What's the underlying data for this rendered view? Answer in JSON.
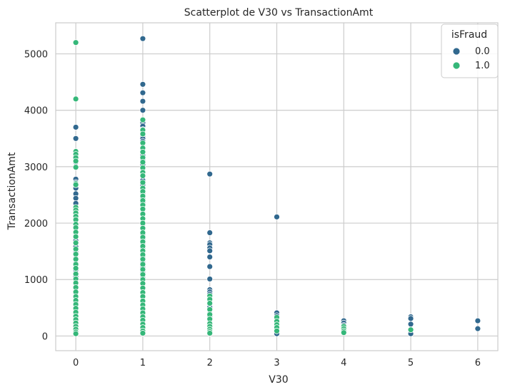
{
  "chart_data": {
    "type": "scatter",
    "title": "Scatterplot de V30 vs TransactionAmt",
    "xlabel": "V30",
    "ylabel": "TransactionAmt",
    "xlim": [
      -0.3,
      6.3
    ],
    "ylim": [
      -260,
      5550
    ],
    "xticks": [
      0,
      1,
      2,
      3,
      4,
      5,
      6
    ],
    "yticks": [
      0,
      1000,
      2000,
      3000,
      4000,
      5000
    ],
    "grid": true,
    "legend": {
      "title": "isFraud",
      "position": "top-right"
    },
    "series": [
      {
        "name": "0.0",
        "color": "#31688e",
        "points": [
          [
            0,
            3700
          ],
          [
            0,
            3500
          ],
          [
            0,
            3250
          ],
          [
            0,
            3080
          ],
          [
            0,
            2780
          ],
          [
            0,
            2720
          ],
          [
            0,
            2620
          ],
          [
            0,
            2520
          ],
          [
            0,
            2440
          ],
          [
            0,
            2350
          ],
          [
            0,
            2230
          ],
          [
            0,
            2100
          ],
          [
            0,
            1950
          ],
          [
            0,
            1840
          ],
          [
            0,
            1780
          ],
          [
            0,
            1690
          ],
          [
            0,
            1580
          ],
          [
            0,
            1480
          ],
          [
            0,
            1380
          ],
          [
            0,
            1290
          ],
          [
            0,
            1170
          ],
          [
            0,
            1050
          ],
          [
            0,
            950
          ],
          [
            0,
            850
          ],
          [
            0,
            760
          ],
          [
            0,
            680
          ],
          [
            0,
            590
          ],
          [
            0,
            520
          ],
          [
            0,
            450
          ],
          [
            0,
            390
          ],
          [
            0,
            330
          ],
          [
            0,
            270
          ],
          [
            0,
            210
          ],
          [
            0,
            160
          ],
          [
            0,
            120
          ],
          [
            0,
            80
          ],
          [
            1,
            5270
          ],
          [
            1,
            4460
          ],
          [
            1,
            4310
          ],
          [
            1,
            4160
          ],
          [
            1,
            4000
          ],
          [
            1,
            3830
          ],
          [
            1,
            3780
          ],
          [
            1,
            3720
          ],
          [
            1,
            3660
          ],
          [
            1,
            3600
          ],
          [
            1,
            3540
          ],
          [
            1,
            3500
          ],
          [
            1,
            3450
          ],
          [
            1,
            3400
          ],
          [
            1,
            3280
          ],
          [
            1,
            3200
          ],
          [
            1,
            3120
          ],
          [
            1,
            3040
          ],
          [
            1,
            2960
          ],
          [
            1,
            2900
          ],
          [
            1,
            2830
          ],
          [
            1,
            2760
          ],
          [
            1,
            2680
          ],
          [
            1,
            2600
          ],
          [
            1,
            2520
          ],
          [
            1,
            2440
          ],
          [
            1,
            2360
          ],
          [
            1,
            2280
          ],
          [
            1,
            2180
          ],
          [
            1,
            2080
          ],
          [
            1,
            1980
          ],
          [
            1,
            1900
          ],
          [
            1,
            1800
          ],
          [
            1,
            1720
          ],
          [
            1,
            1640
          ],
          [
            1,
            1560
          ],
          [
            1,
            1480
          ],
          [
            1,
            1390
          ],
          [
            1,
            1300
          ],
          [
            1,
            1210
          ],
          [
            1,
            1120
          ],
          [
            1,
            1030
          ],
          [
            1,
            940
          ],
          [
            1,
            860
          ],
          [
            1,
            780
          ],
          [
            1,
            700
          ],
          [
            1,
            620
          ],
          [
            1,
            540
          ],
          [
            1,
            460
          ],
          [
            1,
            380
          ],
          [
            1,
            310
          ],
          [
            1,
            240
          ],
          [
            1,
            170
          ],
          [
            1,
            110
          ],
          [
            1,
            60
          ],
          [
            2,
            2870
          ],
          [
            2,
            1830
          ],
          [
            2,
            1650
          ],
          [
            2,
            1620
          ],
          [
            2,
            1560
          ],
          [
            2,
            1510
          ],
          [
            2,
            1400
          ],
          [
            2,
            1230
          ],
          [
            2,
            1010
          ],
          [
            2,
            820
          ],
          [
            2,
            780
          ],
          [
            2,
            740
          ],
          [
            2,
            690
          ],
          [
            2,
            640
          ],
          [
            2,
            600
          ],
          [
            2,
            560
          ],
          [
            2,
            510
          ],
          [
            2,
            460
          ],
          [
            2,
            400
          ],
          [
            2,
            340
          ],
          [
            2,
            290
          ],
          [
            2,
            240
          ],
          [
            2,
            190
          ],
          [
            2,
            150
          ],
          [
            2,
            110
          ],
          [
            2,
            70
          ],
          [
            3,
            2110
          ],
          [
            3,
            410
          ],
          [
            3,
            360
          ],
          [
            3,
            310
          ],
          [
            3,
            260
          ],
          [
            3,
            210
          ],
          [
            3,
            160
          ],
          [
            3,
            110
          ],
          [
            3,
            70
          ],
          [
            3,
            40
          ],
          [
            4,
            270
          ],
          [
            4,
            230
          ],
          [
            4,
            190
          ],
          [
            4,
            160
          ],
          [
            4,
            120
          ],
          [
            4,
            90
          ],
          [
            4,
            60
          ],
          [
            5,
            340
          ],
          [
            5,
            310
          ],
          [
            5,
            210
          ],
          [
            5,
            110
          ],
          [
            5,
            60
          ],
          [
            5,
            40
          ],
          [
            6,
            270
          ],
          [
            6,
            130
          ]
        ]
      },
      {
        "name": "1.0",
        "color": "#35b779",
        "points": [
          [
            0,
            5200
          ],
          [
            0,
            4200
          ],
          [
            0,
            3270
          ],
          [
            0,
            3220
          ],
          [
            0,
            3160
          ],
          [
            0,
            3100
          ],
          [
            0,
            2990
          ],
          [
            0,
            2700
          ],
          [
            0,
            2680
          ],
          [
            0,
            2280
          ],
          [
            0,
            2230
          ],
          [
            0,
            2180
          ],
          [
            0,
            2120
          ],
          [
            0,
            2060
          ],
          [
            0,
            1980
          ],
          [
            0,
            1920
          ],
          [
            0,
            1840
          ],
          [
            0,
            1760
          ],
          [
            0,
            1650
          ],
          [
            0,
            1540
          ],
          [
            0,
            1450
          ],
          [
            0,
            1360
          ],
          [
            0,
            1270
          ],
          [
            0,
            1200
          ],
          [
            0,
            1100
          ],
          [
            0,
            1010
          ],
          [
            0,
            940
          ],
          [
            0,
            860
          ],
          [
            0,
            780
          ],
          [
            0,
            700
          ],
          [
            0,
            630
          ],
          [
            0,
            560
          ],
          [
            0,
            490
          ],
          [
            0,
            420
          ],
          [
            0,
            350
          ],
          [
            0,
            290
          ],
          [
            0,
            230
          ],
          [
            0,
            170
          ],
          [
            0,
            120
          ],
          [
            0,
            70
          ],
          [
            0,
            40
          ],
          [
            1,
            3830
          ],
          [
            1,
            3650
          ],
          [
            1,
            3580
          ],
          [
            1,
            3420
          ],
          [
            1,
            3330
          ],
          [
            1,
            3260
          ],
          [
            1,
            3160
          ],
          [
            1,
            3080
          ],
          [
            1,
            2980
          ],
          [
            1,
            2900
          ],
          [
            1,
            2840
          ],
          [
            1,
            2720
          ],
          [
            1,
            2620
          ],
          [
            1,
            2560
          ],
          [
            1,
            2480
          ],
          [
            1,
            2400
          ],
          [
            1,
            2320
          ],
          [
            1,
            2250
          ],
          [
            1,
            2160
          ],
          [
            1,
            2080
          ],
          [
            1,
            2000
          ],
          [
            1,
            1910
          ],
          [
            1,
            1830
          ],
          [
            1,
            1750
          ],
          [
            1,
            1670
          ],
          [
            1,
            1590
          ],
          [
            1,
            1510
          ],
          [
            1,
            1440
          ],
          [
            1,
            1360
          ],
          [
            1,
            1270
          ],
          [
            1,
            1180
          ],
          [
            1,
            1090
          ],
          [
            1,
            1000
          ],
          [
            1,
            930
          ],
          [
            1,
            850
          ],
          [
            1,
            770
          ],
          [
            1,
            700
          ],
          [
            1,
            620
          ],
          [
            1,
            550
          ],
          [
            1,
            480
          ],
          [
            1,
            410
          ],
          [
            1,
            340
          ],
          [
            1,
            280
          ],
          [
            1,
            210
          ],
          [
            1,
            150
          ],
          [
            1,
            90
          ],
          [
            1,
            50
          ],
          [
            2,
            710
          ],
          [
            2,
            650
          ],
          [
            2,
            580
          ],
          [
            2,
            470
          ],
          [
            2,
            380
          ],
          [
            2,
            300
          ],
          [
            2,
            220
          ],
          [
            2,
            170
          ],
          [
            2,
            120
          ],
          [
            2,
            80
          ],
          [
            2,
            50
          ],
          [
            3,
            330
          ],
          [
            3,
            260
          ],
          [
            3,
            200
          ],
          [
            3,
            150
          ],
          [
            3,
            90
          ],
          [
            4,
            170
          ],
          [
            4,
            130
          ],
          [
            4,
            90
          ],
          [
            4,
            60
          ],
          [
            5,
            110
          ]
        ]
      }
    ]
  }
}
